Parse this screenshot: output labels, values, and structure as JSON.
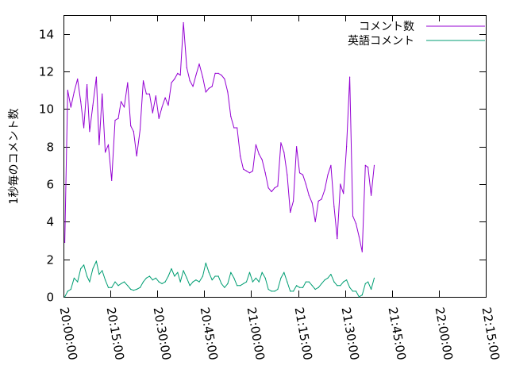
{
  "chart_data": {
    "type": "line",
    "title": "",
    "xlabel": "",
    "ylabel": "1秒毎のコメント数",
    "xlim": [
      "20:00:00",
      "22:15:00"
    ],
    "ylim": [
      0,
      15
    ],
    "x_ticks": [
      "20:00:00",
      "20:15:00",
      "20:30:00",
      "20:45:00",
      "21:00:00",
      "21:15:00",
      "21:30:00",
      "21:45:00",
      "22:00:00",
      "22:15:00"
    ],
    "y_ticks": [
      0,
      2,
      4,
      6,
      8,
      10,
      12,
      14
    ],
    "grid": false,
    "legend_position": "top-right",
    "x_format": "HH:MM:SS",
    "series": [
      {
        "name": "コメント数",
        "color": "#9400d3",
        "points": [
          [
            "20:00:24",
            2.9
          ],
          [
            "20:01:21",
            11.0
          ],
          [
            "20:02:21",
            10.1
          ],
          [
            "20:03:24",
            10.9
          ],
          [
            "20:04:30",
            11.6
          ],
          [
            "20:05:30",
            10.4
          ],
          [
            "20:06:30",
            9.0
          ],
          [
            "20:07:30",
            11.3
          ],
          [
            "20:08:21",
            8.8
          ],
          [
            "20:09:24",
            10.2
          ],
          [
            "20:10:30",
            11.7
          ],
          [
            "20:11:24",
            8.1
          ],
          [
            "20:12:21",
            10.8
          ],
          [
            "20:13:21",
            7.7
          ],
          [
            "20:14:21",
            8.1
          ],
          [
            "20:15:24",
            6.2
          ],
          [
            "20:16:30",
            9.4
          ],
          [
            "20:17:30",
            9.5
          ],
          [
            "20:18:24",
            10.4
          ],
          [
            "20:19:24",
            10.1
          ],
          [
            "20:20:30",
            11.4
          ],
          [
            "20:21:30",
            9.1
          ],
          [
            "20:22:24",
            8.8
          ],
          [
            "20:23:24",
            7.5
          ],
          [
            "20:24:30",
            8.9
          ],
          [
            "20:25:30",
            11.5
          ],
          [
            "20:26:30",
            10.8
          ],
          [
            "20:27:30",
            10.8
          ],
          [
            "20:28:30",
            9.8
          ],
          [
            "20:29:30",
            10.7
          ],
          [
            "20:30:30",
            9.5
          ],
          [
            "20:31:30",
            10.1
          ],
          [
            "20:32:30",
            10.6
          ],
          [
            "20:33:30",
            10.2
          ],
          [
            "20:34:30",
            11.4
          ],
          [
            "20:35:30",
            11.6
          ],
          [
            "20:36:30",
            11.9
          ],
          [
            "20:37:21",
            11.8
          ],
          [
            "20:38:21",
            14.6
          ],
          [
            "20:39:24",
            12.2
          ],
          [
            "20:40:24",
            11.5
          ],
          [
            "20:41:24",
            11.2
          ],
          [
            "20:42:21",
            11.8
          ],
          [
            "20:43:24",
            12.4
          ],
          [
            "20:44:30",
            11.7
          ],
          [
            "20:45:30",
            10.9
          ],
          [
            "20:46:30",
            11.1
          ],
          [
            "20:47:30",
            11.2
          ],
          [
            "20:48:30",
            11.9
          ],
          [
            "20:49:30",
            11.9
          ],
          [
            "20:50:30",
            11.8
          ],
          [
            "20:51:30",
            11.6
          ],
          [
            "20:52:30",
            10.9
          ],
          [
            "20:53:30",
            9.6
          ],
          [
            "20:54:30",
            9.0
          ],
          [
            "20:55:30",
            9.0
          ],
          [
            "20:56:30",
            7.5
          ],
          [
            "20:57:30",
            6.8
          ],
          [
            "20:58:30",
            6.7
          ],
          [
            "20:59:30",
            6.6
          ],
          [
            "21:00:30",
            6.7
          ],
          [
            "21:01:30",
            8.1
          ],
          [
            "21:02:30",
            7.6
          ],
          [
            "21:03:30",
            7.3
          ],
          [
            "21:04:30",
            6.6
          ],
          [
            "21:05:30",
            5.8
          ],
          [
            "21:06:30",
            5.6
          ],
          [
            "21:07:30",
            5.8
          ],
          [
            "21:08:30",
            5.9
          ],
          [
            "21:09:30",
            8.2
          ],
          [
            "21:10:30",
            7.7
          ],
          [
            "21:11:30",
            6.5
          ],
          [
            "21:12:30",
            4.5
          ],
          [
            "21:13:30",
            5.1
          ],
          [
            "21:14:30",
            8.0
          ],
          [
            "21:15:30",
            6.6
          ],
          [
            "21:16:30",
            6.5
          ],
          [
            "21:17:30",
            6.0
          ],
          [
            "21:18:30",
            5.4
          ],
          [
            "21:19:30",
            5.0
          ],
          [
            "21:20:30",
            4.0
          ],
          [
            "21:21:30",
            5.1
          ],
          [
            "21:22:30",
            5.2
          ],
          [
            "21:23:30",
            5.7
          ],
          [
            "21:24:30",
            6.5
          ],
          [
            "21:25:30",
            7.0
          ],
          [
            "21:26:30",
            4.8
          ],
          [
            "21:27:30",
            3.1
          ],
          [
            "21:28:30",
            6.0
          ],
          [
            "21:29:30",
            5.5
          ],
          [
            "21:30:30",
            8.0
          ],
          [
            "21:31:30",
            11.7
          ],
          [
            "21:32:30",
            4.3
          ],
          [
            "21:33:30",
            3.9
          ],
          [
            "21:34:30",
            3.2
          ],
          [
            "21:35:30",
            2.4
          ],
          [
            "21:36:30",
            7.0
          ],
          [
            "21:37:21",
            6.9
          ],
          [
            "21:38:21",
            5.4
          ],
          [
            "21:39:21",
            7.0
          ]
        ]
      },
      {
        "name": "英語コメント",
        "color": "#009e73",
        "points": [
          [
            "20:00:24",
            0.0
          ],
          [
            "20:01:21",
            0.3
          ],
          [
            "20:02:21",
            0.4
          ],
          [
            "20:03:24",
            1.0
          ],
          [
            "20:04:30",
            0.8
          ],
          [
            "20:05:30",
            1.5
          ],
          [
            "20:06:30",
            1.7
          ],
          [
            "20:07:30",
            1.1
          ],
          [
            "20:08:21",
            0.8
          ],
          [
            "20:09:24",
            1.5
          ],
          [
            "20:10:30",
            1.9
          ],
          [
            "20:11:24",
            1.2
          ],
          [
            "20:12:21",
            1.4
          ],
          [
            "20:13:21",
            0.9
          ],
          [
            "20:14:21",
            0.5
          ],
          [
            "20:15:24",
            0.5
          ],
          [
            "20:16:30",
            0.8
          ],
          [
            "20:17:30",
            0.6
          ],
          [
            "20:18:24",
            0.7
          ],
          [
            "20:19:24",
            0.8
          ],
          [
            "20:20:30",
            0.6
          ],
          [
            "20:21:30",
            0.4
          ],
          [
            "20:22:24",
            0.35
          ],
          [
            "20:23:24",
            0.4
          ],
          [
            "20:24:30",
            0.5
          ],
          [
            "20:25:30",
            0.8
          ],
          [
            "20:26:30",
            1.0
          ],
          [
            "20:27:30",
            1.1
          ],
          [
            "20:28:30",
            0.9
          ],
          [
            "20:29:30",
            1.0
          ],
          [
            "20:30:30",
            0.8
          ],
          [
            "20:31:30",
            0.7
          ],
          [
            "20:32:30",
            0.8
          ],
          [
            "20:33:30",
            1.1
          ],
          [
            "20:34:30",
            1.5
          ],
          [
            "20:35:30",
            1.1
          ],
          [
            "20:36:30",
            1.3
          ],
          [
            "20:37:21",
            0.8
          ],
          [
            "20:38:21",
            1.4
          ],
          [
            "20:39:24",
            1.0
          ],
          [
            "20:40:24",
            0.6
          ],
          [
            "20:41:24",
            0.8
          ],
          [
            "20:42:21",
            0.9
          ],
          [
            "20:43:24",
            0.8
          ],
          [
            "20:44:30",
            1.1
          ],
          [
            "20:45:30",
            1.8
          ],
          [
            "20:46:30",
            1.3
          ],
          [
            "20:47:30",
            0.9
          ],
          [
            "20:48:30",
            1.1
          ],
          [
            "20:49:30",
            1.1
          ],
          [
            "20:50:30",
            0.7
          ],
          [
            "20:51:30",
            0.5
          ],
          [
            "20:52:30",
            0.7
          ],
          [
            "20:53:30",
            1.3
          ],
          [
            "20:54:30",
            1.0
          ],
          [
            "20:55:30",
            0.6
          ],
          [
            "20:56:30",
            0.6
          ],
          [
            "20:57:30",
            0.7
          ],
          [
            "20:58:30",
            0.8
          ],
          [
            "20:59:30",
            1.3
          ],
          [
            "21:00:30",
            0.8
          ],
          [
            "21:01:30",
            1.0
          ],
          [
            "21:02:30",
            0.8
          ],
          [
            "21:03:30",
            1.3
          ],
          [
            "21:04:30",
            1.0
          ],
          [
            "21:05:30",
            0.4
          ],
          [
            "21:06:30",
            0.3
          ],
          [
            "21:07:30",
            0.3
          ],
          [
            "21:08:30",
            0.4
          ],
          [
            "21:09:30",
            1.0
          ],
          [
            "21:10:30",
            1.3
          ],
          [
            "21:11:30",
            0.8
          ],
          [
            "21:12:30",
            0.3
          ],
          [
            "21:13:30",
            0.3
          ],
          [
            "21:14:30",
            0.6
          ],
          [
            "21:15:30",
            0.5
          ],
          [
            "21:16:30",
            0.5
          ],
          [
            "21:17:30",
            0.8
          ],
          [
            "21:18:30",
            0.8
          ],
          [
            "21:19:30",
            0.6
          ],
          [
            "21:20:30",
            0.4
          ],
          [
            "21:21:30",
            0.5
          ],
          [
            "21:22:30",
            0.7
          ],
          [
            "21:23:30",
            0.9
          ],
          [
            "21:24:30",
            1.0
          ],
          [
            "21:25:30",
            1.2
          ],
          [
            "21:26:30",
            0.8
          ],
          [
            "21:27:30",
            0.6
          ],
          [
            "21:28:30",
            0.6
          ],
          [
            "21:29:30",
            0.8
          ],
          [
            "21:30:30",
            0.9
          ],
          [
            "21:31:30",
            0.5
          ],
          [
            "21:32:30",
            0.3
          ],
          [
            "21:33:30",
            0.3
          ],
          [
            "21:34:30",
            0.0
          ],
          [
            "21:35:30",
            0.1
          ],
          [
            "21:36:30",
            0.7
          ],
          [
            "21:37:21",
            0.8
          ],
          [
            "21:38:21",
            0.4
          ],
          [
            "21:39:21",
            1.0
          ]
        ]
      }
    ]
  }
}
